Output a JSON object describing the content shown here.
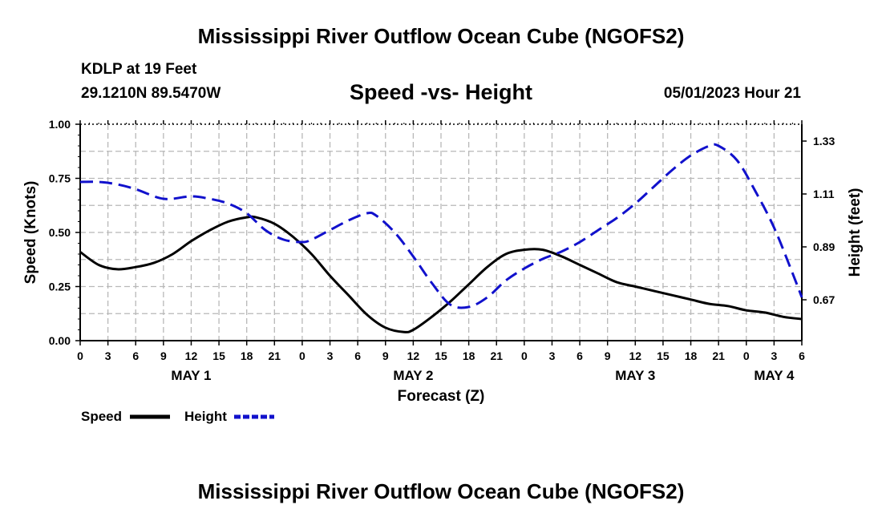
{
  "header": {
    "title": "Mississippi River Outflow Ocean Cube (NGOFS2)",
    "station": "KDLP at 19 Feet",
    "coords": "29.1210N  89.5470W",
    "subtitle": "Speed -vs- Height",
    "timestamp": "05/01/2023 Hour 21"
  },
  "footer": {
    "title": "Mississippi River Outflow Ocean Cube (NGOFS2)"
  },
  "chart_data": {
    "type": "line",
    "title": "Speed -vs- Height",
    "xlabel": "Forecast (Z)",
    "ylabel": "Speed (Knots)",
    "y2label": "Height (feet)",
    "xlim": [
      0,
      78
    ],
    "ylim": [
      0,
      1
    ],
    "y2lim": [
      0.5,
      1.4
    ],
    "grid": true,
    "x_tick_step": 3,
    "x_tick_labels": [
      "0",
      "3",
      "6",
      "9",
      "12",
      "15",
      "18",
      "21",
      "0",
      "3",
      "6",
      "9",
      "12",
      "15",
      "18",
      "21",
      "0",
      "3",
      "6",
      "9",
      "12",
      "15",
      "18",
      "21",
      "0",
      "3",
      "6"
    ],
    "y_ticks": [
      0,
      0.25,
      0.5,
      0.75,
      1.0
    ],
    "y_tick_labels": [
      "0.00",
      "0.25",
      "0.50",
      "0.75",
      "1.00"
    ],
    "y2_ticks": [
      0.67,
      0.89,
      1.11,
      1.33
    ],
    "y2_tick_labels": [
      "0.67",
      "0.89",
      "1.11",
      "1.33"
    ],
    "day_labels": [
      {
        "text": "MAY 1",
        "x": 12
      },
      {
        "text": "MAY 2",
        "x": 36
      },
      {
        "text": "MAY 3",
        "x": 60
      },
      {
        "text": "MAY 4",
        "x": 75
      }
    ],
    "legend_position": "bottom-left",
    "series": [
      {
        "name": "Speed",
        "axis": "left",
        "color": "#000000",
        "style": "solid",
        "x": [
          0,
          2,
          4,
          6,
          8,
          10,
          12,
          14,
          16,
          18,
          19,
          21,
          23,
          25,
          27,
          29,
          31,
          33,
          35,
          36,
          38,
          40,
          42,
          44,
          46,
          48,
          50,
          52,
          54,
          56,
          58,
          60,
          62,
          64,
          66,
          68,
          70,
          72,
          74,
          76,
          78
        ],
        "y": [
          0.41,
          0.35,
          0.33,
          0.34,
          0.36,
          0.4,
          0.46,
          0.51,
          0.55,
          0.57,
          0.57,
          0.54,
          0.48,
          0.4,
          0.3,
          0.21,
          0.12,
          0.06,
          0.04,
          0.05,
          0.11,
          0.18,
          0.26,
          0.34,
          0.4,
          0.42,
          0.42,
          0.39,
          0.35,
          0.31,
          0.27,
          0.25,
          0.23,
          0.21,
          0.19,
          0.17,
          0.16,
          0.14,
          0.13,
          0.11,
          0.1
        ]
      },
      {
        "name": "Height",
        "axis": "right",
        "color": "#1111cc",
        "style": "dashed",
        "x": [
          0,
          2,
          4,
          6,
          8,
          9,
          10,
          12,
          14,
          16,
          18,
          20,
          22,
          24,
          25,
          27,
          29,
          31,
          32,
          34,
          36,
          38,
          40,
          42,
          44,
          46,
          48,
          50,
          52,
          54,
          56,
          58,
          60,
          62,
          64,
          66,
          68,
          69,
          71,
          73,
          75,
          77,
          78
        ],
        "y": [
          1.16,
          1.16,
          1.15,
          1.13,
          1.1,
          1.09,
          1.09,
          1.1,
          1.09,
          1.07,
          1.03,
          0.96,
          0.92,
          0.91,
          0.92,
          0.96,
          1.0,
          1.03,
          1.02,
          0.95,
          0.85,
          0.74,
          0.65,
          0.64,
          0.68,
          0.75,
          0.8,
          0.84,
          0.87,
          0.91,
          0.96,
          1.01,
          1.07,
          1.14,
          1.21,
          1.27,
          1.31,
          1.31,
          1.25,
          1.12,
          0.97,
          0.78,
          0.68
        ]
      }
    ]
  }
}
